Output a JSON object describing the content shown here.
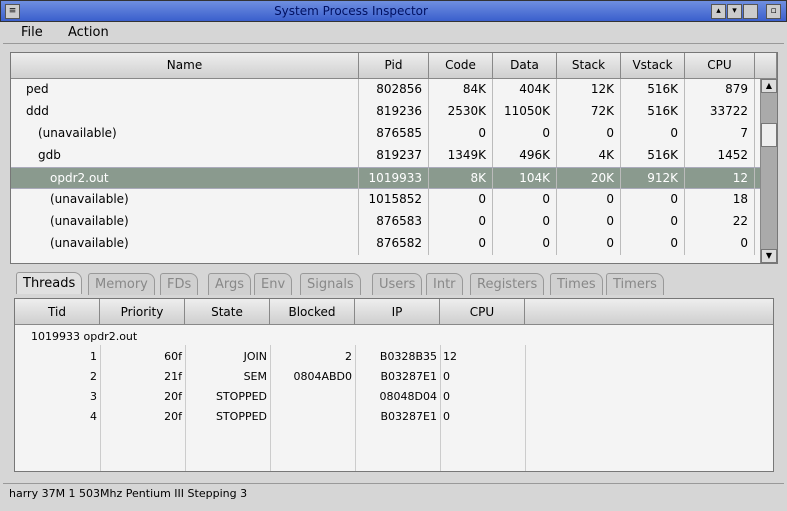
{
  "window": {
    "title": "System Process Inspector"
  },
  "menu": [
    "File",
    "Action"
  ],
  "process_table": {
    "columns": [
      "Name",
      "Pid",
      "Code",
      "Data",
      "Stack",
      "Vstack",
      "CPU"
    ],
    "rows": [
      {
        "name": "ped",
        "indent": 0,
        "pid": "802856",
        "code": "84K",
        "data": "404K",
        "stack": "12K",
        "vstack": "516K",
        "cpu": "879"
      },
      {
        "name": "ddd",
        "indent": 0,
        "pid": "819236",
        "code": "2530K",
        "data": "11050K",
        "stack": "72K",
        "vstack": "516K",
        "cpu": "33722"
      },
      {
        "name": "(unavailable)",
        "indent": 1,
        "pid": "876585",
        "code": "0",
        "data": "0",
        "stack": "0",
        "vstack": "0",
        "cpu": "7"
      },
      {
        "name": "gdb",
        "indent": 1,
        "pid": "819237",
        "code": "1349K",
        "data": "496K",
        "stack": "4K",
        "vstack": "516K",
        "cpu": "1452"
      },
      {
        "name": "opdr2.out",
        "indent": 2,
        "pid": "1019933",
        "code": "8K",
        "data": "104K",
        "stack": "20K",
        "vstack": "912K",
        "cpu": "12",
        "selected": true
      },
      {
        "name": "(unavailable)",
        "indent": 2,
        "pid": "1015852",
        "code": "0",
        "data": "0",
        "stack": "0",
        "vstack": "0",
        "cpu": "18"
      },
      {
        "name": "(unavailable)",
        "indent": 2,
        "pid": "876583",
        "code": "0",
        "data": "0",
        "stack": "0",
        "vstack": "0",
        "cpu": "22"
      },
      {
        "name": "(unavailable)",
        "indent": 2,
        "pid": "876582",
        "code": "0",
        "data": "0",
        "stack": "0",
        "vstack": "0",
        "cpu": "0"
      }
    ]
  },
  "tabs": [
    "Threads",
    "Memory",
    "FDs",
    "Args",
    "Env",
    "Signals",
    "Users",
    "Intr",
    "Registers",
    "Times",
    "Timers"
  ],
  "active_tab": "Threads",
  "threads": {
    "columns": [
      "Tid",
      "Priority",
      "State",
      "Blocked",
      "IP",
      "CPU"
    ],
    "process_label": "1019933 opdr2.out",
    "rows": [
      {
        "tid": "1",
        "priority": "60f",
        "state": "JOIN",
        "blocked": "2",
        "ip": "B0328B35",
        "cpu": "12"
      },
      {
        "tid": "2",
        "priority": "21f",
        "state": "SEM",
        "blocked": "0804ABD0",
        "ip": "B03287E1",
        "cpu": "0"
      },
      {
        "tid": "3",
        "priority": "20f",
        "state": "STOPPED",
        "blocked": "",
        "ip": "08048D04",
        "cpu": "0"
      },
      {
        "tid": "4",
        "priority": "20f",
        "state": "STOPPED",
        "blocked": "",
        "ip": "B03287E1",
        "cpu": "0"
      }
    ]
  },
  "status": "harry   37M 1 503Mhz Pentium III Stepping 3"
}
